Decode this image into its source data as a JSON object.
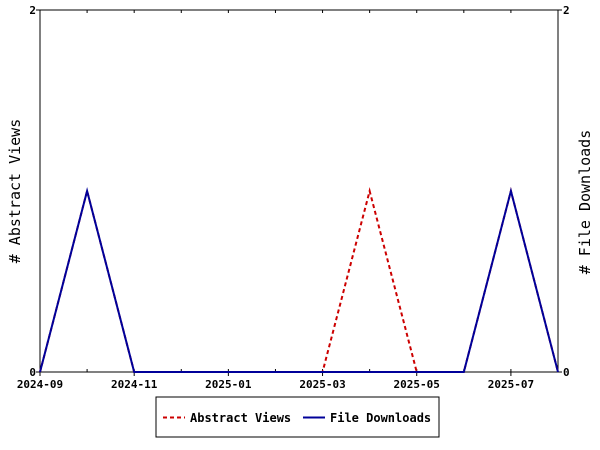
{
  "chart_data": {
    "type": "line",
    "x": [
      "2024-09",
      "2024-10",
      "2024-11",
      "2024-12",
      "2025-01",
      "2025-02",
      "2025-03",
      "2025-04",
      "2025-05",
      "2025-06",
      "2025-07",
      "2025-08"
    ],
    "x_tick_labels": [
      "2024-09",
      "2024-11",
      "2025-01",
      "2025-03",
      "2025-05",
      "2025-07"
    ],
    "series": [
      {
        "name": "Abstract Views",
        "axis": "left",
        "color": "#cc0000",
        "dash": "dashed",
        "values": [
          0,
          1,
          0,
          0,
          0,
          0,
          0,
          1,
          0,
          0,
          1,
          0
        ]
      },
      {
        "name": "File Downloads",
        "axis": "right",
        "color": "#000099",
        "dash": "solid",
        "values": [
          0,
          1,
          0,
          0,
          0,
          0,
          0,
          0,
          0,
          0,
          1,
          0
        ]
      }
    ],
    "ylabel_left": "# Abstract Views",
    "ylabel_right": "# File Downloads",
    "ylim_left": [
      0,
      2
    ],
    "ylim_right": [
      0,
      2
    ],
    "y_tick_labels_left": [
      "0",
      "2"
    ],
    "y_tick_labels_right": [
      "0",
      "2"
    ],
    "grid": false,
    "legend_position": "bottom"
  }
}
